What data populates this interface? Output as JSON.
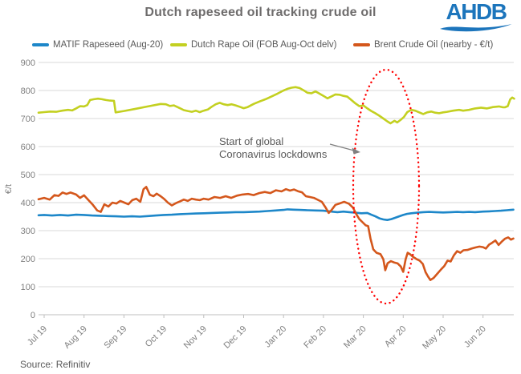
{
  "title": "Dutch rapeseed oil tracking crude oil",
  "logo": {
    "text": "AHDB"
  },
  "source": "Source: Refinitiv",
  "annotation": {
    "line1": "Start of global",
    "line2": "Coronavirus lockdowns"
  },
  "colors": {
    "matif_blue": "#1d87c9",
    "rape_yellow": "#c3d021",
    "brent_orange": "#d4571c",
    "ellipse_red": "#ff0000",
    "logo_blue": "#1c75bc",
    "grid_gray": "#dadada",
    "tick_gray": "#7f7f7f",
    "text_gray": "#595959"
  },
  "chart_data": {
    "type": "line",
    "title": "Dutch rapeseed oil tracking crude oil",
    "xlabel": "",
    "ylabel": "€/t",
    "ylim": [
      0,
      900
    ],
    "ytick_interval": 100,
    "grid": "horizontal-only",
    "legend_position": "top",
    "x_categories": [
      "Jul 19",
      "Aug 19",
      "Sep 19",
      "Oct 19",
      "Nov 19",
      "Dec 19",
      "Jan 20",
      "Feb 20",
      "Mar 20",
      "Apr 20",
      "May 20",
      "Jun 20"
    ],
    "x_unit": "months (0 = Jul 2019 tick)",
    "series": [
      {
        "name": "MATIF Rapeseed (Aug-20)",
        "color": "#1d87c9",
        "points": [
          [
            -0.14,
            355
          ],
          [
            0,
            356
          ],
          [
            0.2,
            354
          ],
          [
            0.4,
            356
          ],
          [
            0.6,
            354
          ],
          [
            0.8,
            357
          ],
          [
            1.0,
            356
          ],
          [
            1.2,
            354
          ],
          [
            1.4,
            353
          ],
          [
            1.6,
            352
          ],
          [
            1.8,
            351
          ],
          [
            2.0,
            350
          ],
          [
            2.2,
            351
          ],
          [
            2.4,
            350
          ],
          [
            2.6,
            352
          ],
          [
            2.8,
            354
          ],
          [
            3.0,
            356
          ],
          [
            3.2,
            357
          ],
          [
            3.4,
            359
          ],
          [
            3.6,
            360
          ],
          [
            3.8,
            361
          ],
          [
            4.0,
            362
          ],
          [
            4.2,
            363
          ],
          [
            4.4,
            364
          ],
          [
            4.6,
            365
          ],
          [
            4.8,
            366
          ],
          [
            5.0,
            366
          ],
          [
            5.2,
            367
          ],
          [
            5.4,
            368
          ],
          [
            5.6,
            370
          ],
          [
            5.8,
            372
          ],
          [
            6.0,
            374
          ],
          [
            6.1,
            376
          ],
          [
            6.25,
            375
          ],
          [
            6.4,
            374
          ],
          [
            6.6,
            373
          ],
          [
            6.8,
            372
          ],
          [
            7.0,
            371
          ],
          [
            7.2,
            368
          ],
          [
            7.35,
            366
          ],
          [
            7.5,
            368
          ],
          [
            7.65,
            366
          ],
          [
            7.8,
            364
          ],
          [
            7.95,
            362
          ],
          [
            8.1,
            363
          ],
          [
            8.2,
            357
          ],
          [
            8.3,
            351
          ],
          [
            8.4,
            344
          ],
          [
            8.5,
            340
          ],
          [
            8.6,
            338
          ],
          [
            8.7,
            341
          ],
          [
            8.8,
            346
          ],
          [
            8.9,
            351
          ],
          [
            9.0,
            356
          ],
          [
            9.1,
            360
          ],
          [
            9.2,
            362
          ],
          [
            9.35,
            364
          ],
          [
            9.5,
            366
          ],
          [
            9.65,
            367
          ],
          [
            9.8,
            366
          ],
          [
            10.0,
            365
          ],
          [
            10.2,
            366
          ],
          [
            10.35,
            367
          ],
          [
            10.5,
            366
          ],
          [
            10.65,
            367
          ],
          [
            10.8,
            366
          ],
          [
            11.0,
            368
          ],
          [
            11.15,
            369
          ],
          [
            11.3,
            370
          ],
          [
            11.45,
            371
          ],
          [
            11.6,
            373
          ],
          [
            11.76,
            375
          ]
        ]
      },
      {
        "name": "Dutch Rape Oil (FOB Aug-Oct delv)",
        "color": "#c3d021",
        "points": [
          [
            -0.14,
            721
          ],
          [
            0,
            723
          ],
          [
            0.15,
            725
          ],
          [
            0.3,
            724
          ],
          [
            0.45,
            728
          ],
          [
            0.6,
            731
          ],
          [
            0.7,
            729
          ],
          [
            0.8,
            736
          ],
          [
            0.9,
            744
          ],
          [
            1.0,
            743
          ],
          [
            1.08,
            748
          ],
          [
            1.15,
            766
          ],
          [
            1.25,
            769
          ],
          [
            1.35,
            771
          ],
          [
            1.45,
            769
          ],
          [
            1.55,
            766
          ],
          [
            1.65,
            764
          ],
          [
            1.75,
            763
          ],
          [
            1.79,
            722
          ],
          [
            2.0,
            727
          ],
          [
            2.3,
            735
          ],
          [
            2.6,
            743
          ],
          [
            2.92,
            752
          ],
          [
            3.05,
            751
          ],
          [
            3.15,
            745
          ],
          [
            3.25,
            747
          ],
          [
            3.4,
            737
          ],
          [
            3.5,
            730
          ],
          [
            3.6,
            727
          ],
          [
            3.7,
            724
          ],
          [
            3.8,
            728
          ],
          [
            3.9,
            723
          ],
          [
            4.0,
            728
          ],
          [
            4.1,
            732
          ],
          [
            4.2,
            742
          ],
          [
            4.3,
            751
          ],
          [
            4.4,
            756
          ],
          [
            4.5,
            751
          ],
          [
            4.6,
            748
          ],
          [
            4.7,
            751
          ],
          [
            4.8,
            747
          ],
          [
            4.9,
            742
          ],
          [
            5.0,
            737
          ],
          [
            5.1,
            741
          ],
          [
            5.25,
            752
          ],
          [
            5.4,
            761
          ],
          [
            5.55,
            769
          ],
          [
            5.7,
            779
          ],
          [
            5.85,
            789
          ],
          [
            6.0,
            800
          ],
          [
            6.1,
            806
          ],
          [
            6.2,
            810
          ],
          [
            6.3,
            812
          ],
          [
            6.4,
            809
          ],
          [
            6.5,
            801
          ],
          [
            6.6,
            792
          ],
          [
            6.7,
            790
          ],
          [
            6.8,
            797
          ],
          [
            6.9,
            789
          ],
          [
            7.0,
            781
          ],
          [
            7.1,
            772
          ],
          [
            7.2,
            779
          ],
          [
            7.3,
            786
          ],
          [
            7.4,
            785
          ],
          [
            7.5,
            781
          ],
          [
            7.6,
            778
          ],
          [
            7.7,
            766
          ],
          [
            7.8,
            754
          ],
          [
            7.9,
            744
          ],
          [
            8.0,
            747
          ],
          [
            8.1,
            736
          ],
          [
            8.2,
            727
          ],
          [
            8.3,
            719
          ],
          [
            8.4,
            710
          ],
          [
            8.5,
            700
          ],
          [
            8.6,
            690
          ],
          [
            8.68,
            683
          ],
          [
            8.78,
            692
          ],
          [
            8.85,
            686
          ],
          [
            8.95,
            697
          ],
          [
            9.02,
            706
          ],
          [
            9.1,
            723
          ],
          [
            9.2,
            731
          ],
          [
            9.3,
            728
          ],
          [
            9.4,
            722
          ],
          [
            9.5,
            716
          ],
          [
            9.6,
            722
          ],
          [
            9.7,
            725
          ],
          [
            9.8,
            721
          ],
          [
            9.9,
            719
          ],
          [
            10.0,
            722
          ],
          [
            10.1,
            724
          ],
          [
            10.25,
            728
          ],
          [
            10.4,
            731
          ],
          [
            10.5,
            728
          ],
          [
            10.65,
            731
          ],
          [
            10.8,
            736
          ],
          [
            10.95,
            739
          ],
          [
            11.1,
            736
          ],
          [
            11.25,
            741
          ],
          [
            11.4,
            743
          ],
          [
            11.5,
            740
          ],
          [
            11.55,
            740
          ],
          [
            11.62,
            744
          ],
          [
            11.68,
            768
          ],
          [
            11.73,
            775
          ],
          [
            11.78,
            771
          ]
        ]
      },
      {
        "name": "Brent Crude Oil (nearby - €/t)",
        "color": "#d4571c",
        "points": [
          [
            -0.14,
            412
          ],
          [
            0,
            417
          ],
          [
            0.14,
            411
          ],
          [
            0.26,
            427
          ],
          [
            0.36,
            424
          ],
          [
            0.46,
            436
          ],
          [
            0.56,
            431
          ],
          [
            0.66,
            436
          ],
          [
            0.8,
            429
          ],
          [
            0.9,
            417
          ],
          [
            1.0,
            426
          ],
          [
            1.11,
            409
          ],
          [
            1.21,
            394
          ],
          [
            1.33,
            372
          ],
          [
            1.42,
            367
          ],
          [
            1.51,
            394
          ],
          [
            1.61,
            386
          ],
          [
            1.71,
            400
          ],
          [
            1.81,
            397
          ],
          [
            1.91,
            406
          ],
          [
            2.01,
            400
          ],
          [
            2.11,
            394
          ],
          [
            2.21,
            409
          ],
          [
            2.31,
            414
          ],
          [
            2.41,
            403
          ],
          [
            2.49,
            448
          ],
          [
            2.56,
            456
          ],
          [
            2.65,
            428
          ],
          [
            2.74,
            423
          ],
          [
            2.82,
            432
          ],
          [
            2.92,
            423
          ],
          [
            3.0,
            414
          ],
          [
            3.1,
            400
          ],
          [
            3.2,
            390
          ],
          [
            3.3,
            398
          ],
          [
            3.4,
            404
          ],
          [
            3.5,
            411
          ],
          [
            3.6,
            406
          ],
          [
            3.7,
            414
          ],
          [
            3.8,
            411
          ],
          [
            3.9,
            409
          ],
          [
            4.0,
            414
          ],
          [
            4.12,
            411
          ],
          [
            4.27,
            420
          ],
          [
            4.41,
            417
          ],
          [
            4.55,
            423
          ],
          [
            4.69,
            417
          ],
          [
            4.83,
            425
          ],
          [
            4.97,
            429
          ],
          [
            5.11,
            431
          ],
          [
            5.25,
            427
          ],
          [
            5.39,
            434
          ],
          [
            5.53,
            438
          ],
          [
            5.67,
            434
          ],
          [
            5.81,
            444
          ],
          [
            5.95,
            440
          ],
          [
            6.06,
            448
          ],
          [
            6.16,
            443
          ],
          [
            6.26,
            447
          ],
          [
            6.36,
            441
          ],
          [
            6.46,
            437
          ],
          [
            6.56,
            423
          ],
          [
            6.66,
            420
          ],
          [
            6.76,
            417
          ],
          [
            6.86,
            410
          ],
          [
            6.96,
            403
          ],
          [
            7.06,
            381
          ],
          [
            7.13,
            363
          ],
          [
            7.2,
            373
          ],
          [
            7.3,
            392
          ],
          [
            7.4,
            397
          ],
          [
            7.52,
            403
          ],
          [
            7.64,
            396
          ],
          [
            7.74,
            382
          ],
          [
            7.83,
            357
          ],
          [
            7.9,
            341
          ],
          [
            7.98,
            330
          ],
          [
            8.06,
            319
          ],
          [
            8.12,
            316
          ],
          [
            8.18,
            272
          ],
          [
            8.25,
            233
          ],
          [
            8.33,
            221
          ],
          [
            8.43,
            216
          ],
          [
            8.5,
            198
          ],
          [
            8.55,
            159
          ],
          [
            8.61,
            184
          ],
          [
            8.69,
            191
          ],
          [
            8.78,
            186
          ],
          [
            8.86,
            183
          ],
          [
            8.94,
            172
          ],
          [
            9.0,
            153
          ],
          [
            9.06,
            198
          ],
          [
            9.11,
            221
          ],
          [
            9.17,
            216
          ],
          [
            9.25,
            206
          ],
          [
            9.33,
            199
          ],
          [
            9.41,
            193
          ],
          [
            9.49,
            181
          ],
          [
            9.56,
            152
          ],
          [
            9.62,
            137
          ],
          [
            9.68,
            124
          ],
          [
            9.76,
            131
          ],
          [
            9.84,
            144
          ],
          [
            9.95,
            162
          ],
          [
            10.03,
            174
          ],
          [
            10.11,
            193
          ],
          [
            10.19,
            190
          ],
          [
            10.27,
            212
          ],
          [
            10.35,
            227
          ],
          [
            10.43,
            221
          ],
          [
            10.51,
            230
          ],
          [
            10.61,
            231
          ],
          [
            10.71,
            236
          ],
          [
            10.81,
            240
          ],
          [
            10.91,
            243
          ],
          [
            11.0,
            241
          ],
          [
            11.07,
            236
          ],
          [
            11.15,
            250
          ],
          [
            11.23,
            257
          ],
          [
            11.31,
            265
          ],
          [
            11.39,
            249
          ],
          [
            11.47,
            261
          ],
          [
            11.55,
            271
          ],
          [
            11.63,
            276
          ],
          [
            11.7,
            268
          ],
          [
            11.76,
            272
          ]
        ]
      }
    ],
    "annotations": {
      "ellipse_region": "Mar-Apr 2020 crude oil collapse",
      "label_lines": [
        "Start of global",
        "Coronavirus lockdowns"
      ]
    }
  }
}
